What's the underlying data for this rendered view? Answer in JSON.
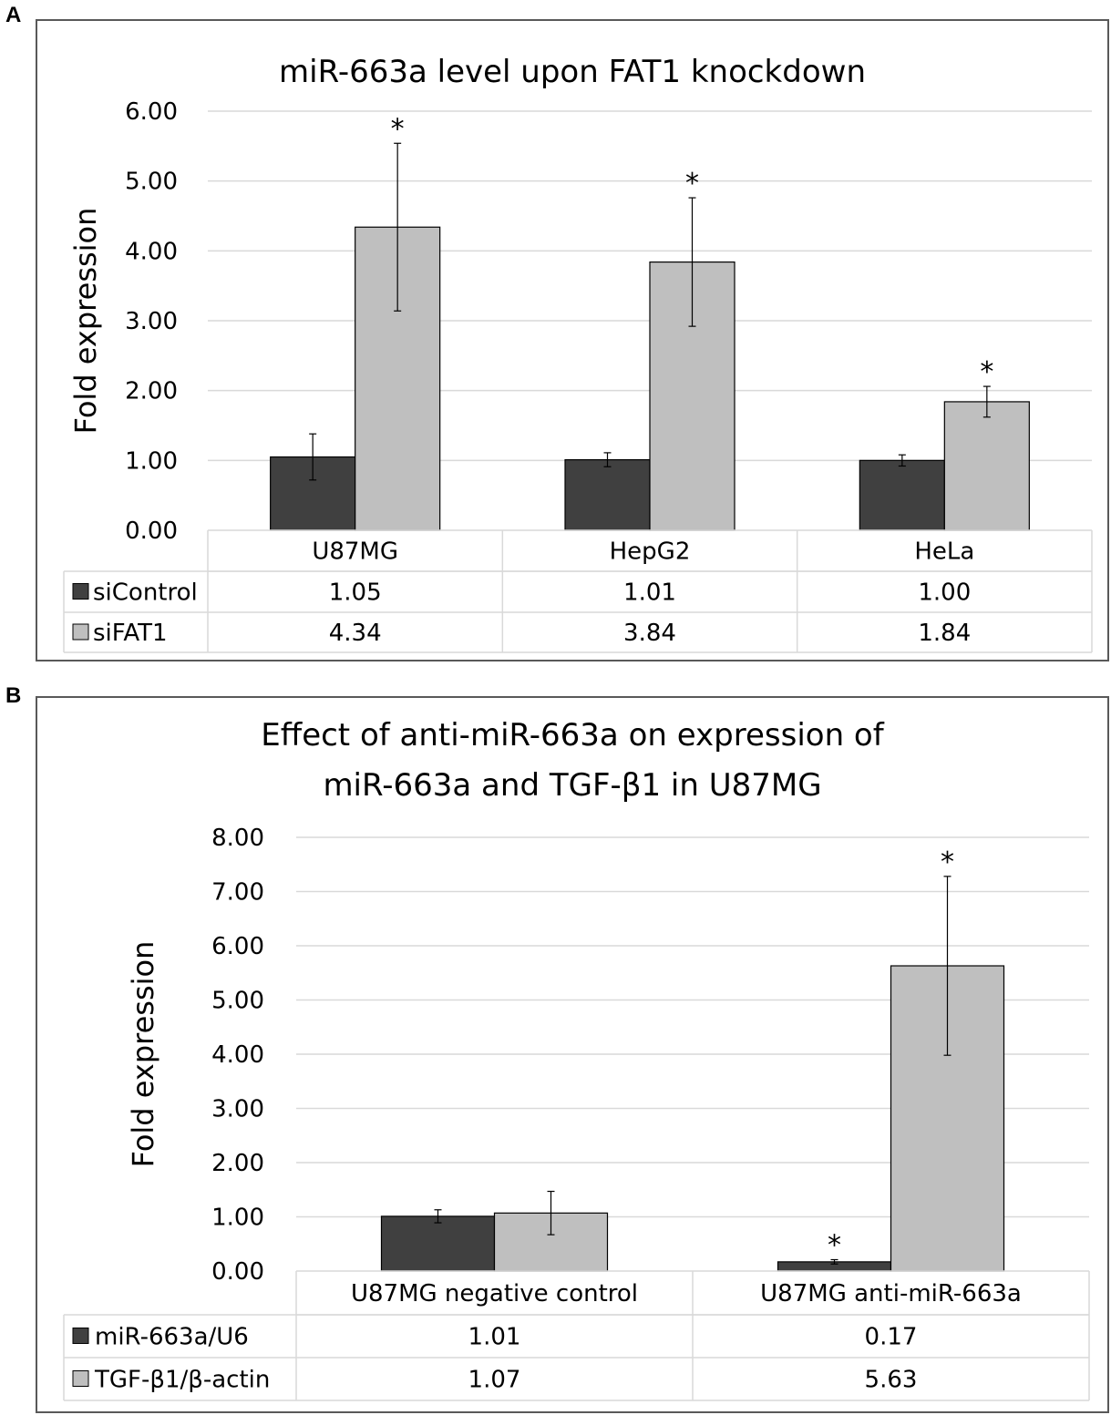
{
  "colors": {
    "series1": "#404040",
    "series2": "#bfbfbf",
    "grid": "#d9d9d9",
    "frame": "#595959"
  },
  "panels": {
    "a_label": "A",
    "b_label": "B"
  },
  "chart_data": [
    {
      "type": "bar",
      "panel": "A",
      "title": "miR-663a level upon FAT1 knockdown",
      "title_lines": [
        "miR-663a level upon FAT1 knockdown"
      ],
      "ylabel": "Fold expression",
      "xlabel": "",
      "ylim": [
        0,
        6
      ],
      "yticks": [
        "0.00",
        "1.00",
        "2.00",
        "3.00",
        "4.00",
        "5.00",
        "6.00"
      ],
      "grid": true,
      "legend": "data-table",
      "categories": [
        "U87MG",
        "HepG2",
        "HeLa"
      ],
      "series": [
        {
          "name": "siControl",
          "values": [
            1.05,
            1.01,
            1.0
          ],
          "value_labels": [
            "1.05",
            "1.01",
            "1.00"
          ],
          "error": [
            0.33,
            0.1,
            0.08
          ],
          "significant": [
            false,
            false,
            false
          ]
        },
        {
          "name": "siFAT1",
          "values": [
            4.34,
            3.84,
            1.84
          ],
          "value_labels": [
            "4.34",
            "3.84",
            "1.84"
          ],
          "error": [
            1.2,
            0.92,
            0.22
          ],
          "significant": [
            true,
            true,
            true
          ]
        }
      ],
      "significance_marker": "*"
    },
    {
      "type": "bar",
      "panel": "B",
      "title": "Effect of anti-miR-663a on expression of miR-663a and TGF-β1 in U87MG",
      "title_lines": [
        "Effect of anti-miR-663a on expression of",
        "miR-663a and TGF-β1 in U87MG"
      ],
      "ylabel": "Fold expression",
      "xlabel": "",
      "ylim": [
        0,
        8
      ],
      "yticks": [
        "0.00",
        "1.00",
        "2.00",
        "3.00",
        "4.00",
        "5.00",
        "6.00",
        "7.00",
        "8.00"
      ],
      "grid": true,
      "legend": "data-table",
      "categories": [
        "U87MG negative control",
        "U87MG anti-miR-663a"
      ],
      "series": [
        {
          "name": "miR-663a/U6",
          "values": [
            1.01,
            0.17
          ],
          "value_labels": [
            "1.01",
            "0.17"
          ],
          "error": [
            0.12,
            0.04
          ],
          "significant": [
            false,
            true
          ]
        },
        {
          "name": "TGF-β1/β-actin",
          "values": [
            1.07,
            5.63
          ],
          "value_labels": [
            "1.07",
            "5.63"
          ],
          "error": [
            0.4,
            1.65
          ],
          "significant": [
            false,
            true
          ]
        }
      ],
      "significance_marker": "*"
    }
  ]
}
